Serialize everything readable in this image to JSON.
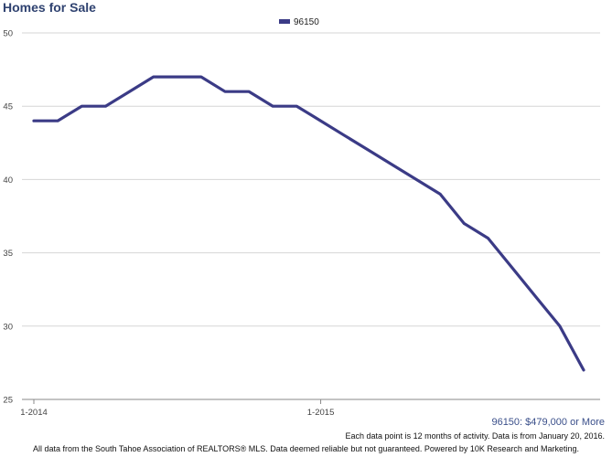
{
  "chart_data": {
    "type": "line",
    "title": "Homes for Sale",
    "subtitle": "96150: $479,000 or More",
    "x_tick_labels": [
      "1-2014",
      "1-2015"
    ],
    "x": [
      "2014-01",
      "2014-02",
      "2014-03",
      "2014-04",
      "2014-05",
      "2014-06",
      "2014-07",
      "2014-08",
      "2014-09",
      "2014-10",
      "2014-11",
      "2014-12",
      "2015-01",
      "2015-02",
      "2015-03",
      "2015-04",
      "2015-05",
      "2015-06",
      "2015-07",
      "2015-08",
      "2015-09",
      "2015-10",
      "2015-11",
      "2015-12"
    ],
    "series": [
      {
        "name": "96150",
        "color": "#3b3b86",
        "values": [
          44,
          44,
          45,
          45,
          46,
          47,
          47,
          47,
          46,
          46,
          45,
          45,
          44,
          43,
          42,
          41,
          40,
          39,
          37,
          36,
          34,
          32,
          30,
          27
        ]
      }
    ],
    "ylim": [
      25,
      50
    ],
    "y_ticks": [
      25,
      30,
      35,
      40,
      45,
      50
    ],
    "grid": true,
    "legend": "top-center",
    "notes": [
      "Each data point is 12 months of activity. Data is from January 20, 2016.",
      "All data from the South Tahoe Association of REALTORS® MLS. Data deemed reliable but not guaranteed. Powered by 10K Research and Marketing."
    ]
  }
}
